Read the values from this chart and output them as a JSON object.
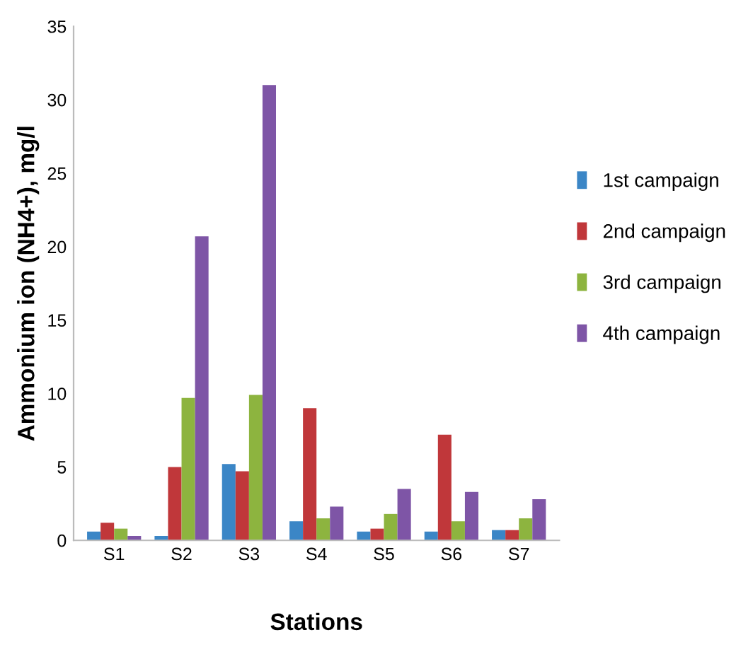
{
  "chart_data": {
    "type": "bar",
    "xlabel": "Stations",
    "ylabel": "Ammonium ion (NH4+), mg/l",
    "categories": [
      "S1",
      "S2",
      "S3",
      "S4",
      "S5",
      "S6",
      "S7"
    ],
    "series": [
      {
        "name": "1st campaign",
        "color": "#3b86c6",
        "values": [
          0.6,
          0.3,
          5.2,
          1.3,
          0.6,
          0.6,
          0.7
        ]
      },
      {
        "name": "2nd campaign",
        "color": "#c0373a",
        "values": [
          1.2,
          5.0,
          4.7,
          9.0,
          0.8,
          7.2,
          0.7
        ]
      },
      {
        "name": "3rd campaign",
        "color": "#8db43f",
        "values": [
          0.8,
          9.7,
          9.9,
          1.5,
          1.8,
          1.3,
          1.5
        ]
      },
      {
        "name": "4th campaign",
        "color": "#7e55a6",
        "values": [
          0.3,
          20.7,
          31.0,
          2.3,
          3.5,
          3.3,
          2.8
        ]
      }
    ],
    "ylim": [
      0,
      35
    ],
    "yticks": [
      0,
      5,
      10,
      15,
      20,
      25,
      30,
      35
    ],
    "grid": false,
    "legend": "right"
  }
}
